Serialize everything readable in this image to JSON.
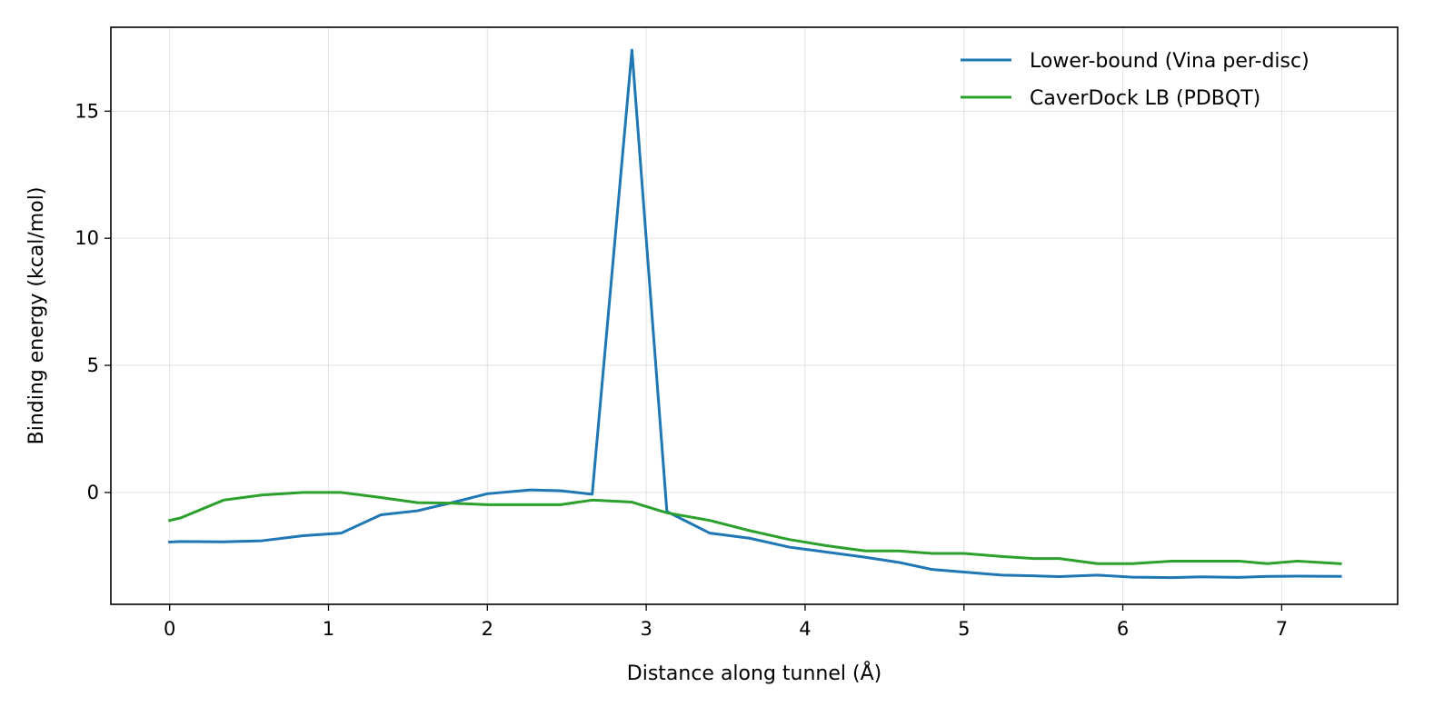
{
  "chart_data": {
    "type": "line",
    "title": "",
    "xlabel": "Distance along tunnel (Å)",
    "ylabel": "Binding energy (kcal/mol)",
    "xlim": [
      -0.37,
      7.73
    ],
    "ylim": [
      -4.4,
      18.3
    ],
    "xticks": [
      "0",
      "1",
      "2",
      "3",
      "4",
      "5",
      "6",
      "7"
    ],
    "yticks": [
      "0",
      "5",
      "10",
      "15"
    ],
    "grid": true,
    "legend_position": "top-right",
    "series": [
      {
        "name": "Lower-bound (Vina per-disc)",
        "color": "#1f77b4",
        "x": [
          0,
          0.07,
          0.34,
          0.58,
          0.84,
          1.08,
          1.33,
          1.56,
          1.77,
          2.0,
          2.27,
          2.46,
          2.66,
          2.91,
          3.13,
          3.4,
          3.65,
          3.9,
          4.14,
          4.38,
          4.59,
          4.8,
          5.0,
          5.24,
          5.44,
          5.6,
          5.84,
          6.06,
          6.31,
          6.49,
          6.73,
          6.91,
          7.1,
          7.37
        ],
        "y": [
          -1.95,
          -1.93,
          -1.94,
          -1.9,
          -1.7,
          -1.6,
          -0.88,
          -0.72,
          -0.41,
          -0.05,
          0.1,
          0.07,
          -0.07,
          17.4,
          -0.75,
          -1.6,
          -1.8,
          -2.15,
          -2.35,
          -2.55,
          -2.75,
          -3.03,
          -3.13,
          -3.25,
          -3.28,
          -3.31,
          -3.25,
          -3.33,
          -3.35,
          -3.32,
          -3.34,
          -3.3,
          -3.29,
          -3.3
        ]
      },
      {
        "name": "CaverDock LB (PDBQT)",
        "color": "#2ca02c",
        "x": [
          0,
          0.07,
          0.34,
          0.58,
          0.84,
          1.08,
          1.33,
          1.56,
          1.77,
          2.0,
          2.27,
          2.46,
          2.66,
          2.91,
          3.13,
          3.4,
          3.65,
          3.9,
          4.14,
          4.38,
          4.59,
          4.8,
          5.0,
          5.24,
          5.44,
          5.6,
          5.84,
          6.06,
          6.31,
          6.49,
          6.73,
          6.91,
          7.1,
          7.37
        ],
        "y": [
          -1.1,
          -1.0,
          -0.3,
          -0.1,
          0.0,
          0.0,
          -0.2,
          -0.4,
          -0.42,
          -0.48,
          -0.48,
          -0.48,
          -0.3,
          -0.38,
          -0.8,
          -1.1,
          -1.5,
          -1.85,
          -2.1,
          -2.3,
          -2.3,
          -2.4,
          -2.4,
          -2.52,
          -2.6,
          -2.6,
          -2.8,
          -2.8,
          -2.7,
          -2.7,
          -2.7,
          -2.8,
          -2.7,
          -2.8
        ]
      }
    ]
  }
}
